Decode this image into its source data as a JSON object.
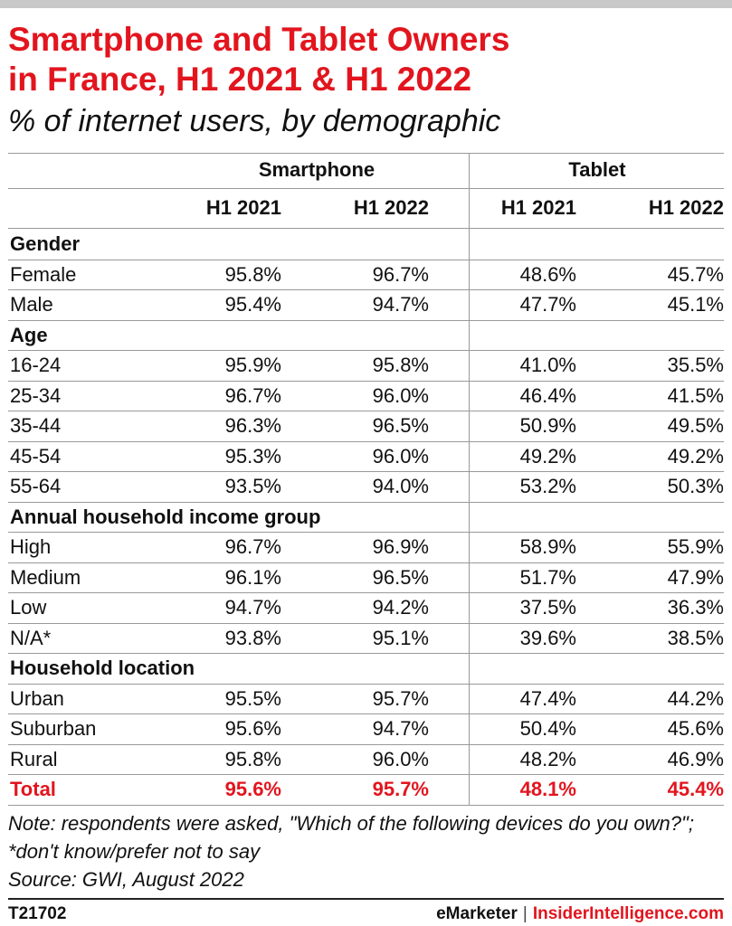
{
  "header": {
    "title": "Smartphone and Tablet Owners\nin France, H1 2021 & H1 2022",
    "subtitle": "% of internet users, by demographic"
  },
  "chart_data": {
    "type": "table",
    "column_groups": [
      "Smartphone",
      "Tablet"
    ],
    "columns": [
      "H1 2021",
      "H1 2022",
      "H1 2021",
      "H1 2022"
    ],
    "sections": [
      {
        "name": "Gender",
        "rows": [
          {
            "label": "Female",
            "values": [
              "95.8%",
              "96.7%",
              "48.6%",
              "45.7%"
            ]
          },
          {
            "label": "Male",
            "values": [
              "95.4%",
              "94.7%",
              "47.7%",
              "45.1%"
            ]
          }
        ]
      },
      {
        "name": "Age",
        "rows": [
          {
            "label": "16-24",
            "values": [
              "95.9%",
              "95.8%",
              "41.0%",
              "35.5%"
            ]
          },
          {
            "label": "25-34",
            "values": [
              "96.7%",
              "96.0%",
              "46.4%",
              "41.5%"
            ]
          },
          {
            "label": "35-44",
            "values": [
              "96.3%",
              "96.5%",
              "50.9%",
              "49.5%"
            ]
          },
          {
            "label": "45-54",
            "values": [
              "95.3%",
              "96.0%",
              "49.2%",
              "49.2%"
            ]
          },
          {
            "label": "55-64",
            "values": [
              "93.5%",
              "94.0%",
              "53.2%",
              "50.3%"
            ]
          }
        ]
      },
      {
        "name": "Annual household income group",
        "rows": [
          {
            "label": "High",
            "values": [
              "96.7%",
              "96.9%",
              "58.9%",
              "55.9%"
            ]
          },
          {
            "label": "Medium",
            "values": [
              "96.1%",
              "96.5%",
              "51.7%",
              "47.9%"
            ]
          },
          {
            "label": "Low",
            "values": [
              "94.7%",
              "94.2%",
              "37.5%",
              "36.3%"
            ]
          },
          {
            "label": "N/A*",
            "values": [
              "93.8%",
              "95.1%",
              "39.6%",
              "38.5%"
            ]
          }
        ]
      },
      {
        "name": "Household location",
        "rows": [
          {
            "label": "Urban",
            "values": [
              "95.5%",
              "95.7%",
              "47.4%",
              "44.2%"
            ]
          },
          {
            "label": "Suburban",
            "values": [
              "95.6%",
              "94.7%",
              "50.4%",
              "45.6%"
            ]
          },
          {
            "label": "Rural",
            "values": [
              "95.8%",
              "96.0%",
              "48.2%",
              "46.9%"
            ]
          }
        ]
      }
    ],
    "total": {
      "label": "Total",
      "values": [
        "95.6%",
        "95.7%",
        "48.1%",
        "45.4%"
      ]
    }
  },
  "footer": {
    "note": "Note: respondents were asked, \"Which of the following devices do you own?\"; *don't know/prefer not to say\nSource: GWI, August 2022",
    "code": "T21702",
    "brand_left": "eMarketer",
    "brand_sep": "|",
    "brand_right": "InsiderIntelligence.com"
  },
  "colors": {
    "accent": "#e2151e",
    "rules": "#999999",
    "topbar": "#c8c8c8"
  }
}
